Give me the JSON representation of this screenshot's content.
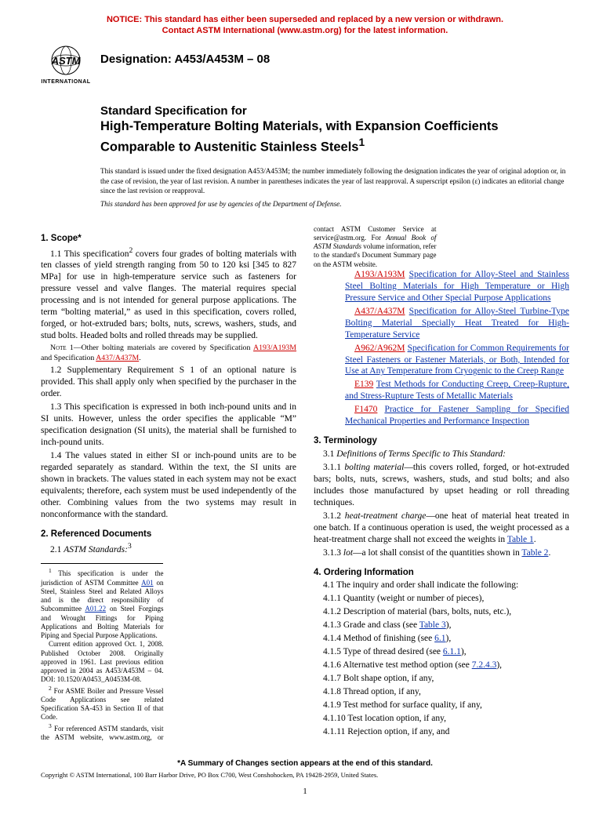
{
  "colors": {
    "notice": "#cc0000",
    "link": "#0a33aa",
    "red": "#cc0000",
    "text": "#000000",
    "background": "#ffffff"
  },
  "notice": {
    "line1": "NOTICE: This standard has either been superseded and replaced by a new version or withdrawn.",
    "line2": "Contact ASTM International (www.astm.org) for the latest information."
  },
  "header": {
    "logo_international": "INTERNATIONAL",
    "designation": "Designation: A453/A453M – 08"
  },
  "title": {
    "pre": "Standard Specification for",
    "main": "High-Temperature Bolting Materials, with Expansion Coefficients Comparable to Austenitic Stainless Steels",
    "super": "1"
  },
  "issuance": "This standard is issued under the fixed designation A453/A453M; the number immediately following the designation indicates the year of original adoption or, in the case of revision, the year of last revision. A number in parentheses indicates the year of last reapproval. A superscript epsilon (ε) indicates an editorial change since the last revision or reapproval.",
  "dod": "This standard has been approved for use by agencies of the Department of Defense.",
  "sections": {
    "scope_head": "1. Scope*",
    "scope_11a": "1.1 This specification",
    "scope_11_sup": "2",
    "scope_11b": " covers four grades of bolting materials with ten classes of yield strength ranging from 50 to 120 ksi [345 to 827 MPa] for use in high-temperature service such as fasteners for pressure vessel and valve flanges. The material requires special processing and is not intended for general purpose applications. The term “bolting material,” as used in this specification, covers rolled, forged, or hot-extruded bars; bolts, nuts, screws, washers, studs, and stud bolts. Headed bolts and rolled threads may be supplied.",
    "note1_label": "Note 1",
    "note1_a": "—Other bolting materials are covered by Specification ",
    "note1_link1": "A193/A193M",
    "note1_b": " and Specification ",
    "note1_link2": "A437/A437M",
    "note1_c": ".",
    "scope_12": "1.2 Supplementary Requirement S 1 of an optional nature is provided. This shall apply only when specified by the purchaser in the order.",
    "scope_13": "1.3 This specification is expressed in both inch-pound units and in SI units. However, unless the order specifies the applicable “M” specification designation (SI units), the material shall be furnished to inch-pound units.",
    "scope_14": "1.4 The values stated in either SI or inch-pound units are to be regarded separately as standard. Within the text, the SI units are shown in brackets. The values stated in each system may not be exact equivalents; therefore, each system must be used independently of the other. Combining values from the two systems may result in nonconformance with the standard.",
    "refdocs_head": "2. Referenced Documents",
    "refdocs_21a": "2.1 ",
    "refdocs_21b": "ASTM Standards:",
    "refdocs_21_sup": "3",
    "refs": [
      {
        "code": "A193/A193M",
        "title": "Specification for Alloy-Steel and Stainless Steel Bolting Materials for High Temperature or High Pressure Service and Other Special Purpose Applications"
      },
      {
        "code": "A437/A437M",
        "title": "Specification for Alloy-Steel Turbine-Type Bolting Material Specially Heat Treated for High-Temperature Service"
      },
      {
        "code": "A962/A962M",
        "title": "Specification for Common Requirements for Steel Fasteners or Fastener Materials, or Both, Intended for Use at Any Temperature from Cryogenic to the Creep Range"
      },
      {
        "code": "E139",
        "title": "Test Methods for Conducting Creep, Creep-Rupture, and Stress-Rupture Tests of Metallic Materials"
      },
      {
        "code": "F1470",
        "title": "Practice for Fastener Sampling for Specified Mechanical Properties and Performance Inspection"
      }
    ],
    "term_head": "3. Terminology",
    "term_31": "Definitions of Terms Specific to This Standard:",
    "term_311_num": "3.1.1 ",
    "term_311_t": "bolting material",
    "term_311_b": "—this covers rolled, forged, or hot-extruded bars; bolts, nuts, screws, washers, studs, and stud bolts; and also includes those manufactured by upset heading or roll threading techniques.",
    "term_312_num": "3.1.2 ",
    "term_312_t": "heat-treatment charge",
    "term_312_b": "—one heat of material heat treated in one batch. If a continuous operation is used, the weight processed as a heat-treatment charge shall not exceed the weights in ",
    "term_312_link": "Table 1",
    "term_312_c": ".",
    "term_313_num": "3.1.3 ",
    "term_313_t": "lot",
    "term_313_b": "—a lot shall consist of the quantities shown in ",
    "term_313_link": "Table 2",
    "term_313_c": ".",
    "order_head": "4. Ordering Information",
    "order_41": "4.1 The inquiry and order shall indicate the following:",
    "order_items": [
      "4.1.1 Quantity (weight or number of pieces),",
      "4.1.2 Description of material (bars, bolts, nuts, etc.),",
      {
        "pre": "4.1.3 Grade and class (see ",
        "link": "Table 3",
        "post": "),"
      },
      {
        "pre": "4.1.4 Method of finishing (see ",
        "link": "6.1",
        "post": "),"
      },
      {
        "pre": "4.1.5 Type of thread desired (see ",
        "link": "6.1.1",
        "post": "),"
      },
      {
        "pre": "4.1.6 Alternative test method option (see ",
        "link": "7.2.4.3",
        "post": "),"
      },
      "4.1.7 Bolt shape option, if any,",
      "4.1.8 Thread option, if any,",
      "4.1.9 Test method for surface quality, if any,",
      "4.1.10 Test location option, if any,",
      "4.1.11 Rejection option, if any, and"
    ]
  },
  "footnotes": {
    "f1a": " This specification is under the jurisdiction of ASTM Committee ",
    "f1_link1": "A01",
    "f1b": " on Steel, Stainless Steel and Related Alloys and is the direct responsibility of Subcommittee ",
    "f1_link2": "A01.22",
    "f1c": " on Steel Forgings and Wrought Fittings for Piping Applications and Bolting Materials for Piping and Special Purpose Applications.",
    "f1_ed": "Current edition approved Oct. 1, 2008. Published October 2008. Originally approved in 1961. Last previous edition approved in 2004 as A453/A453M – 04. DOI: 10.1520/A0453_A0453M-08.",
    "f2": " For ASME Boiler and Pressure Vessel Code Applications see related Specification SA-453 in Section II of that Code.",
    "f3a": " For referenced ASTM standards, visit the ASTM website, www.astm.org, or contact ASTM Customer Service at service@astm.org. For ",
    "f3b": "Annual Book of ASTM Standards",
    "f3c": " volume information, refer to the standard's Document Summary page on the ASTM website."
  },
  "bottom": {
    "summary": "*A Summary of Changes section appears at the end of this standard.",
    "copyright": "Copyright © ASTM International, 100 Barr Harbor Drive, PO Box C700, West Conshohocken, PA 19428-2959, United States.",
    "page_no": "1"
  }
}
